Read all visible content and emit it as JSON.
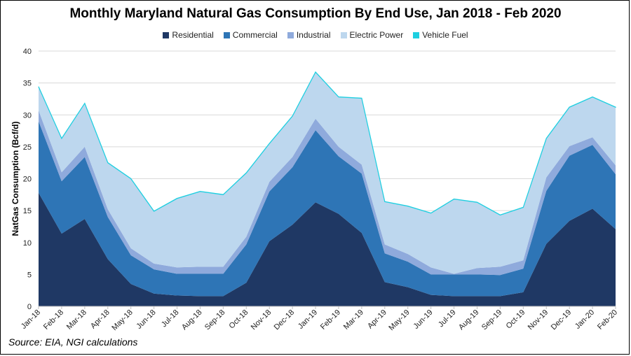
{
  "chart_data": {
    "type": "area",
    "stacked": true,
    "title": "Monthly Maryland Natural Gas Consumption By End Use, Jan 2018 - Feb 2020",
    "xlabel": "",
    "ylabel": "NatGas Consumption (Bcf/d)",
    "ylim": [
      0,
      40
    ],
    "yticks": [
      0,
      5,
      10,
      15,
      20,
      25,
      30,
      35,
      40
    ],
    "grid": true,
    "legend_position": "top",
    "categories": [
      "Jan-18",
      "Feb-18",
      "Mar-18",
      "Apr-18",
      "May-18",
      "Jun-18",
      "Jul-18",
      "Aug-18",
      "Sep-18",
      "Oct-18",
      "Nov-18",
      "Dec-18",
      "Jan-19",
      "Feb-19",
      "Mar-19",
      "Apr-19",
      "May-19",
      "Jun-19",
      "Jul-19",
      "Aug-19",
      "Sep-19",
      "Oct-19",
      "Nov-19",
      "Dec-19",
      "Jan-20",
      "Feb-20"
    ],
    "series": [
      {
        "name": "Residential",
        "color": "#1f3864",
        "values": [
          17.8,
          11.4,
          13.7,
          7.4,
          3.5,
          2.0,
          1.7,
          1.6,
          1.6,
          3.7,
          10.2,
          12.8,
          16.3,
          14.5,
          11.5,
          3.8,
          3.0,
          1.8,
          1.6,
          1.6,
          1.6,
          2.2,
          9.8,
          13.4,
          15.3,
          12.1
        ]
      },
      {
        "name": "Commercial",
        "color": "#2e75b6",
        "values": [
          11.2,
          8.2,
          9.7,
          6.6,
          4.5,
          3.8,
          3.4,
          3.5,
          3.5,
          6.0,
          7.8,
          9.0,
          11.3,
          9.0,
          9.3,
          4.5,
          4.0,
          3.2,
          3.4,
          3.4,
          3.3,
          3.7,
          8.3,
          10.2,
          10.0,
          8.6
        ]
      },
      {
        "name": "Industrial",
        "color": "#8faadc",
        "values": [
          1.7,
          1.4,
          1.6,
          1.2,
          1.1,
          0.9,
          1.0,
          1.1,
          1.1,
          1.2,
          1.5,
          1.6,
          1.8,
          1.5,
          1.4,
          1.4,
          1.2,
          1.1,
          0.1,
          1.0,
          1.3,
          1.3,
          2.1,
          1.5,
          1.2,
          1.4
        ]
      },
      {
        "name": "Electric Power",
        "color": "#bdd7ee",
        "values": [
          3.7,
          5.3,
          6.8,
          7.3,
          10.9,
          8.2,
          10.8,
          11.8,
          11.3,
          10.0,
          6.0,
          6.4,
          7.3,
          7.8,
          10.4,
          6.7,
          7.5,
          8.5,
          11.7,
          10.3,
          8.1,
          8.3,
          6.1,
          6.1,
          6.3,
          9.1
        ]
      },
      {
        "name": "Vehicle Fuel",
        "color": "#1ecfe0",
        "values": [
          0.02,
          0.02,
          0.02,
          0.02,
          0.02,
          0.02,
          0.02,
          0.02,
          0.02,
          0.02,
          0.02,
          0.02,
          0.02,
          0.02,
          0.02,
          0.02,
          0.02,
          0.02,
          0.02,
          0.02,
          0.02,
          0.02,
          0.02,
          0.02,
          0.02,
          0.02
        ]
      }
    ]
  },
  "source": "Source: EIA, NGI calculations"
}
